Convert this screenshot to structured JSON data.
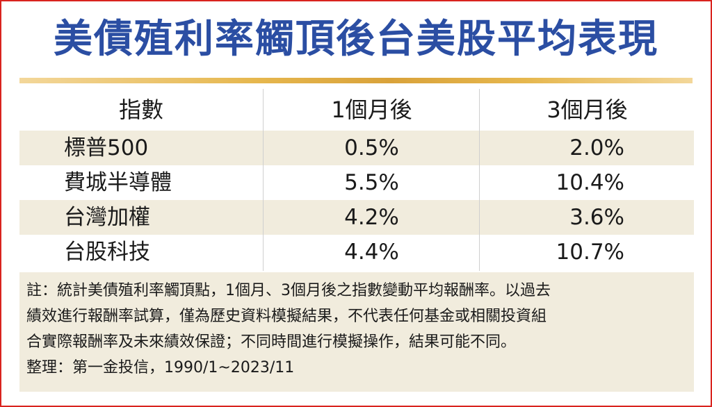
{
  "title": "美債殖利率觸頂後台美股平均表現",
  "table": {
    "headers": [
      "指數",
      "1個月後",
      "3個月後"
    ],
    "rows": [
      {
        "index": "標普500",
        "m1": "0.5%",
        "m3": "2.0%"
      },
      {
        "index": "費城半導體",
        "m1": "5.5%",
        "m3": "10.4%"
      },
      {
        "index": "台灣加權",
        "m1": "4.2%",
        "m3": "3.6%"
      },
      {
        "index": "台股科技",
        "m1": "4.4%",
        "m3": "10.7%"
      }
    ]
  },
  "note": {
    "lines": [
      "註：統計美債殖利率觸頂點，1個月、3個月後之指數變動平均報酬率。以過去",
      "績效進行報酬率試算，僅為歷史資料模擬結果，不代表任何基金或相關投資組",
      "合實際報酬率及未來績效保證；不同時間進行模擬操作，結果可能不同。",
      "整理：第一金投信，1990/1~2023/11"
    ]
  },
  "colors": {
    "title": "#2b4ea3",
    "border": "#d9231f",
    "shade": "#f1ecdd",
    "gold": "#e6b74e"
  }
}
